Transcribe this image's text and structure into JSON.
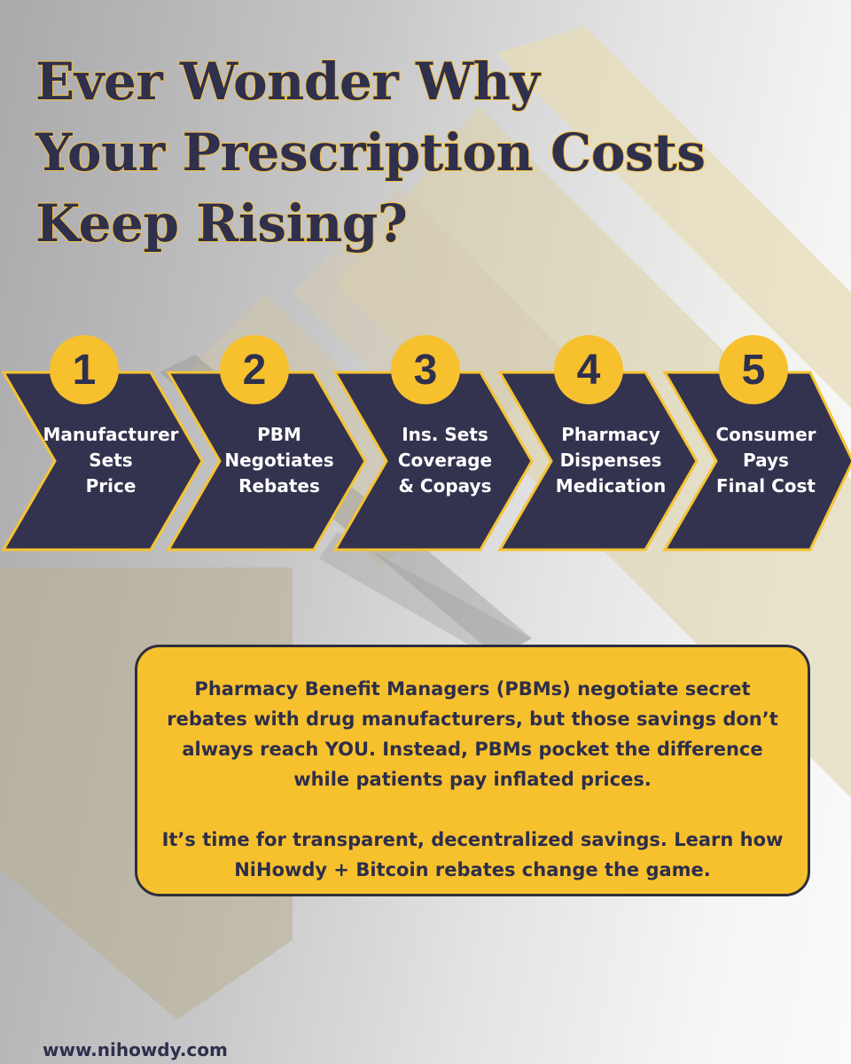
{
  "headline": {
    "line1": "Ever Wonder Why",
    "line2": "Your Prescription Costs",
    "line3": "Keep Rising?"
  },
  "steps": [
    {
      "number": "1",
      "line1": "Manufacturer",
      "line2": "Sets",
      "line3": "Price"
    },
    {
      "number": "2",
      "line1": "PBM",
      "line2": "Negotiates",
      "line3": "Rebates"
    },
    {
      "number": "3",
      "line1": "Ins. Sets",
      "line2": "Coverage",
      "line3": "& Copays"
    },
    {
      "number": "4",
      "line1": "Pharmacy",
      "line2": "Dispenses",
      "line3": "Medication"
    },
    {
      "number": "5",
      "line1": "Consumer",
      "line2": "Pays",
      "line3": "Final Cost"
    }
  ],
  "info": {
    "paragraph1": "Pharmacy Benefit Managers (PBMs) negotiate secret rebates with drug manufacturers, but those savings don’t always reach YOU. Instead, PBMs pocket the difference while patients pay inflated prices.",
    "paragraph2": "It’s time for transparent, decentralized savings. Learn how NiHowdy + Bitcoin rebates change the game."
  },
  "footer": {
    "url": "www.nihowdy.com"
  },
  "colors": {
    "navy": "#33334f",
    "gold": "#f7c02d",
    "text_dark": "#2f2f4e"
  }
}
